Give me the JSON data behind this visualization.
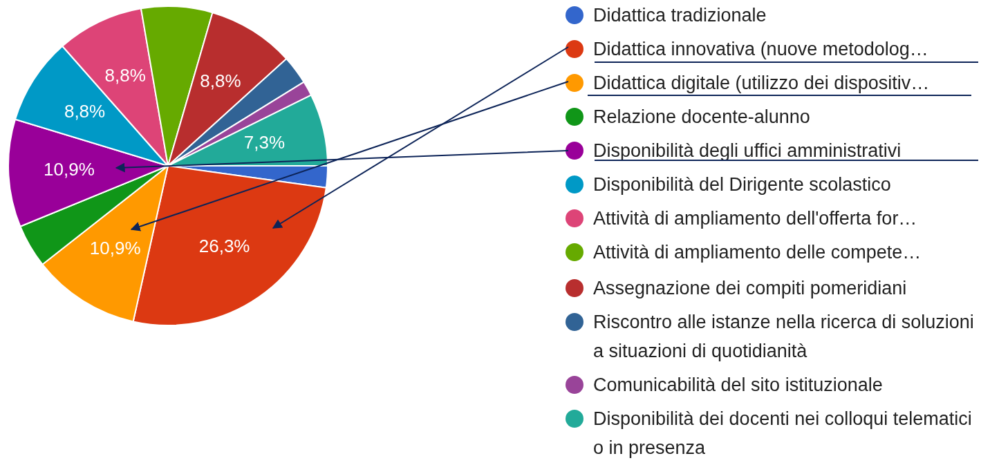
{
  "chart_data": {
    "type": "pie",
    "legend": "right",
    "categories": [
      "Didattica tradizionale",
      "Didattica innovativa (nuove metodolog…",
      "Didattica digitale (utilizzo dei dispositiv…",
      "Relazione docente-alunno",
      "Disponibilità degli uffici amministrativi",
      "Disponibilità del Dirigente scolastico",
      "Attività di ampliamento dell'offerta for…",
      "Attività di ampliamento delle compete…",
      "Assegnazione dei compiti pomeridiani",
      "Riscontro alle istanze nella ricerca di soluzioni a situazioni di quotidianità",
      "Comunicabilità del sito istituzionale",
      "Disponibilità dei docenti nei colloqui telematici o in presenza"
    ],
    "values": [
      2.2,
      26.3,
      10.9,
      4.4,
      10.9,
      8.8,
      8.8,
      7.2,
      8.8,
      2.9,
      1.5,
      7.3
    ],
    "value_labels": [
      null,
      "26,3%",
      "10,9%",
      null,
      "10,9%",
      "8,8%",
      "8,8%",
      null,
      "8,8%",
      null,
      null,
      "7,3%"
    ],
    "colors": [
      "#3366cc",
      "#dc3912",
      "#ff9900",
      "#109618",
      "#990099",
      "#0099c6",
      "#dd4477",
      "#66aa00",
      "#b82e2e",
      "#316395",
      "#994499",
      "#22aa99"
    ]
  }
}
